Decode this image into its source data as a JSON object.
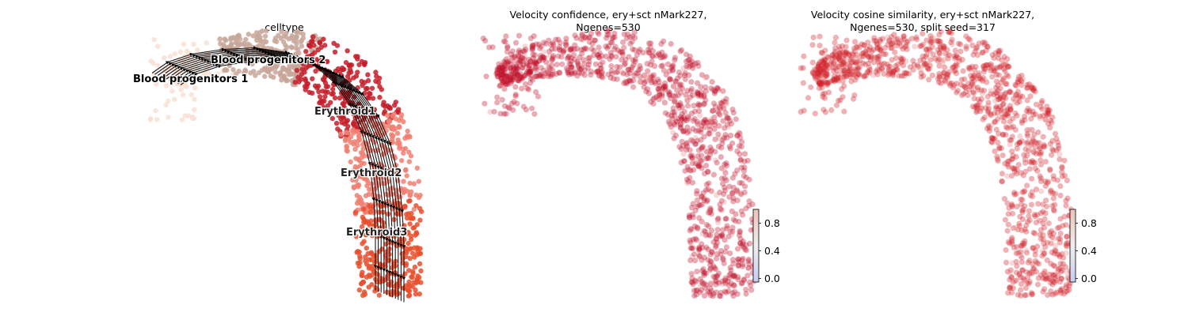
{
  "chart_data": [
    {
      "type": "scatter",
      "title": "celltype",
      "description_kind": "umap-embedding-with-velocity-streamlines",
      "legend": "on-data",
      "categories": [
        {
          "name": "Blood progenitors 1",
          "color": "#f9e0d3"
        },
        {
          "name": "Blood progenitors 2",
          "color": "#c8a79a"
        },
        {
          "name": "Erythroid1",
          "color": "#c41e2a"
        },
        {
          "name": "Erythroid2",
          "color": "#f08072"
        },
        {
          "name": "Erythroid3",
          "color": "#e8502e"
        }
      ],
      "streamlines": true,
      "grid": false,
      "axes": "off"
    },
    {
      "type": "scatter",
      "title": "Velocity confidence, ery+sct nMark227,\nNgenes=530",
      "colormap": "coolwarm",
      "colorbar": {
        "ticks": [
          "0.0",
          "0.4",
          "0.8"
        ],
        "range": [
          -0.05,
          1.0
        ]
      },
      "dominant_color": "#c0102a",
      "grid": false,
      "axes": "off"
    },
    {
      "type": "scatter",
      "title": "Velocity cosine similarity, ery+sct nMark227,\nNgenes=530, split seed=317",
      "colormap": "coolwarm",
      "colorbar": {
        "ticks": [
          "0.0",
          "0.4",
          "0.8"
        ],
        "range": [
          -0.05,
          1.0
        ]
      },
      "dominant_color": "#d0262e",
      "grid": false,
      "axes": "off"
    }
  ]
}
